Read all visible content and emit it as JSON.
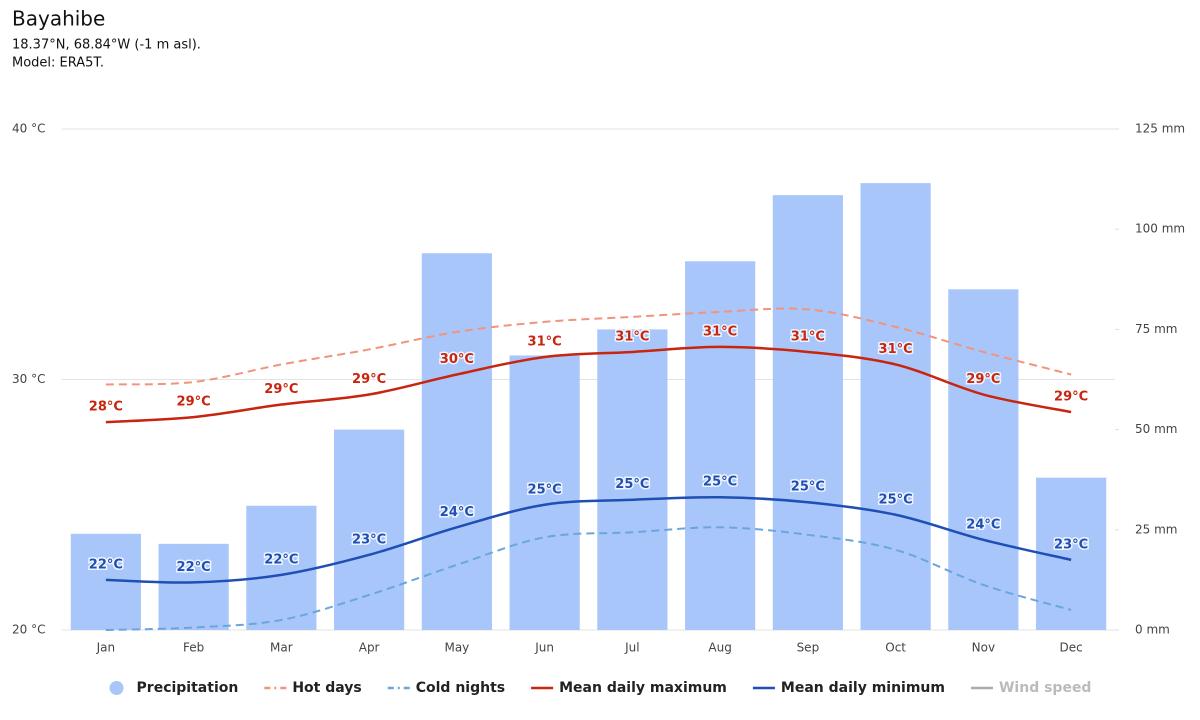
{
  "chart_data": {
    "type": "combo",
    "title": "Bayahibe",
    "subtitle": [
      "18.37°N, 68.84°W (-1 m asl).",
      "Model: ERA5T."
    ],
    "categories": [
      "Jan",
      "Feb",
      "Mar",
      "Apr",
      "May",
      "Jun",
      "Jul",
      "Aug",
      "Sep",
      "Oct",
      "Nov",
      "Dec"
    ],
    "ylim": [
      20,
      40
    ],
    "yticks": [
      {
        "value": 20,
        "label": "20 °C"
      },
      {
        "value": 30,
        "label": "30 °C"
      },
      {
        "value": 40,
        "label": "40 °C"
      }
    ],
    "y2lim": [
      0,
      125
    ],
    "y2ticks": [
      {
        "value": 0,
        "label": "0 mm"
      },
      {
        "value": 25,
        "label": "25 mm"
      },
      {
        "value": 50,
        "label": "50 mm"
      },
      {
        "value": 75,
        "label": "75 mm"
      },
      {
        "value": 100,
        "label": "100 mm"
      },
      {
        "value": 125,
        "label": "125 mm"
      }
    ],
    "grid": true,
    "legend": "bottom",
    "series": [
      {
        "name": "Precipitation",
        "type": "bar",
        "axis": "y2",
        "color": "#a9c6fb",
        "values": [
          24,
          21.5,
          31,
          50,
          94,
          68.5,
          75,
          92,
          108.5,
          111.5,
          85,
          38
        ]
      },
      {
        "name": "Hot days",
        "type": "line",
        "dashed": true,
        "color": "#f2937b",
        "values": [
          29.8,
          29.9,
          30.6,
          31.2,
          31.9,
          32.3,
          32.5,
          32.7,
          32.8,
          32.1,
          31.1,
          30.2
        ]
      },
      {
        "name": "Cold nights",
        "type": "line",
        "dashed": true,
        "color": "#6aa6dc",
        "values": [
          20.0,
          20.1,
          20.4,
          21.4,
          22.6,
          23.7,
          23.9,
          24.1,
          23.8,
          23.2,
          21.8,
          20.8
        ]
      },
      {
        "name": "Mean daily maximum",
        "type": "line",
        "color": "#c8250e",
        "values": [
          28.3,
          28.5,
          29.0,
          29.4,
          30.2,
          30.9,
          31.1,
          31.3,
          31.1,
          30.6,
          29.4,
          28.7
        ],
        "value_labels": [
          "28°C",
          "29°C",
          "29°C",
          "29°C",
          "30°C",
          "31°C",
          "31°C",
          "31°C",
          "31°C",
          "31°C",
          "29°C",
          "29°C"
        ]
      },
      {
        "name": "Mean daily minimum",
        "type": "line",
        "color": "#1f4fb4",
        "values": [
          22.0,
          21.9,
          22.2,
          23.0,
          24.1,
          25.0,
          25.2,
          25.3,
          25.1,
          24.6,
          23.6,
          22.8
        ],
        "value_labels": [
          "22°C",
          "22°C",
          "22°C",
          "23°C",
          "24°C",
          "25°C",
          "25°C",
          "25°C",
          "25°C",
          "25°C",
          "24°C",
          "23°C"
        ]
      },
      {
        "name": "Wind speed",
        "type": "line",
        "visible": false,
        "color": "#9e9e9e",
        "values": [
          null,
          null,
          null,
          null,
          null,
          null,
          null,
          null,
          null,
          null,
          null,
          null
        ]
      }
    ]
  }
}
